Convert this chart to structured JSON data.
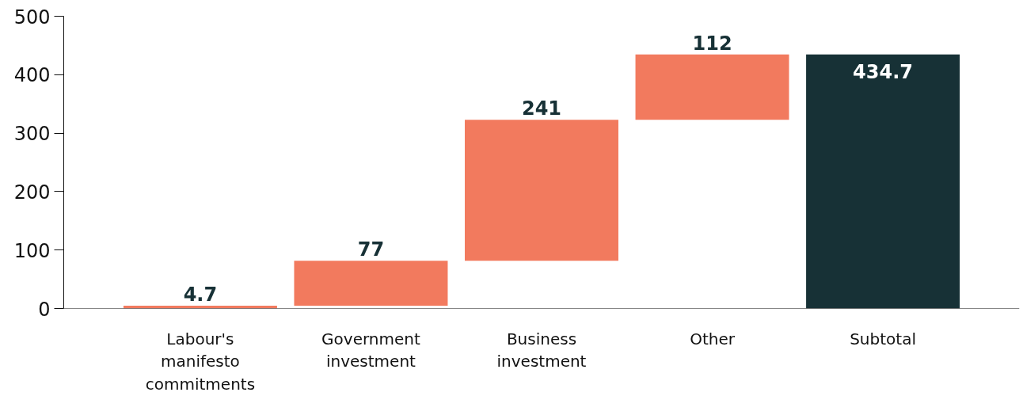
{
  "chart_data": {
    "type": "bar",
    "categories": [
      "Labour's manifesto commitments",
      "Government investment",
      "Business investment",
      "Other",
      "Subtotal"
    ],
    "values": [
      4.7,
      77,
      241,
      112,
      434.7
    ],
    "base": [
      0,
      4.7,
      81.7,
      322.7,
      0
    ],
    "colors": [
      "#f27a5e",
      "#f27a5e",
      "#f27a5e",
      "#f27a5e",
      "#173136"
    ],
    "ylim": [
      0,
      500
    ],
    "yticks": [
      0,
      100,
      200,
      300,
      400,
      500
    ],
    "grid": false,
    "data_labels": true
  }
}
